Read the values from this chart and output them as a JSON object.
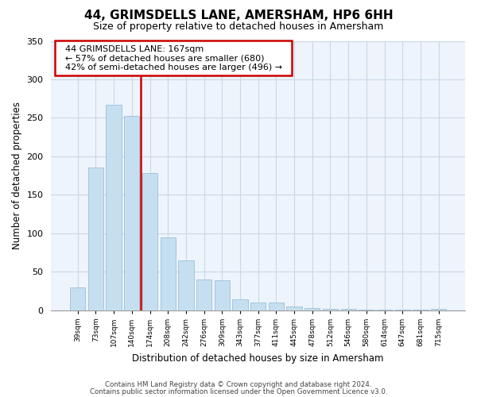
{
  "title": "44, GRIMSDELLS LANE, AMERSHAM, HP6 6HH",
  "subtitle": "Size of property relative to detached houses in Amersham",
  "xlabel": "Distribution of detached houses by size in Amersham",
  "ylabel": "Number of detached properties",
  "bar_labels": [
    "39sqm",
    "73sqm",
    "107sqm",
    "140sqm",
    "174sqm",
    "208sqm",
    "242sqm",
    "276sqm",
    "309sqm",
    "343sqm",
    "377sqm",
    "411sqm",
    "445sqm",
    "478sqm",
    "512sqm",
    "546sqm",
    "580sqm",
    "614sqm",
    "647sqm",
    "681sqm",
    "715sqm"
  ],
  "bar_values": [
    30,
    185,
    267,
    252,
    178,
    95,
    65,
    40,
    39,
    14,
    10,
    10,
    5,
    3,
    2,
    2,
    1,
    1,
    1,
    1,
    2
  ],
  "bar_color": "#c5dff0",
  "bar_edge_color": "#9bbfd8",
  "vline_x": 3.5,
  "vline_color": "#cc0000",
  "annotation_title": "44 GRIMSDELLS LANE: 167sqm",
  "annotation_line1": "← 57% of detached houses are smaller (680)",
  "annotation_line2": "42% of semi-detached houses are larger (496) →",
  "annotation_box_color": "#ffffff",
  "annotation_box_edge": "#cc0000",
  "ylim": [
    0,
    350
  ],
  "yticks": [
    0,
    50,
    100,
    150,
    200,
    250,
    300,
    350
  ],
  "footer1": "Contains HM Land Registry data © Crown copyright and database right 2024.",
  "footer2": "Contains public sector information licensed under the Open Government Licence v3.0.",
  "bg_color": "#eef4fb"
}
